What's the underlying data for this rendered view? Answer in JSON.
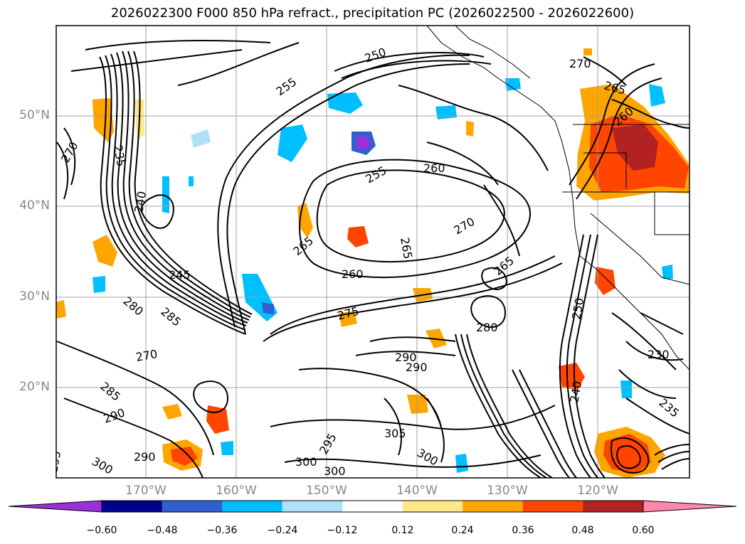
{
  "title": "2026022300 F000 850 hPa refract., precipitation PC (2026022500 - 2026022600)",
  "lat_labels": [
    "50°N",
    "40°N",
    "30°N",
    "20°N"
  ],
  "lon_labels": [
    "170°W",
    "160°W",
    "150°W",
    "140°W",
    "130°W",
    "120°W"
  ],
  "colorbar": {
    "ticks": [
      "−0.60",
      "−0.48",
      "−0.36",
      "−0.24",
      "−0.12",
      "0.12",
      "0.24",
      "0.36",
      "0.48",
      "0.60"
    ],
    "colors": [
      "#9b30d8",
      "#000090",
      "#3060d0",
      "#00bfff",
      "#b0e0f8",
      "#ffffff",
      "#ffe88a",
      "#ffa500",
      "#ff4500",
      "#b22222",
      "#ff88aa"
    ]
  },
  "contour_labels": [
    "250",
    "255",
    "260",
    "265",
    "270",
    "235",
    "240",
    "245",
    "265",
    "255",
    "260",
    "270",
    "265",
    "260",
    "275",
    "280",
    "290",
    "290",
    "300",
    "305",
    "300",
    "295",
    "300",
    "290",
    "270",
    "280",
    "285",
    "285",
    "290",
    "295",
    "300",
    "230",
    "235",
    "240",
    "250",
    "265",
    "270"
  ],
  "colors": {
    "frame": "#000000",
    "grid": "#a0a0a0",
    "tick_label": "#888888"
  }
}
